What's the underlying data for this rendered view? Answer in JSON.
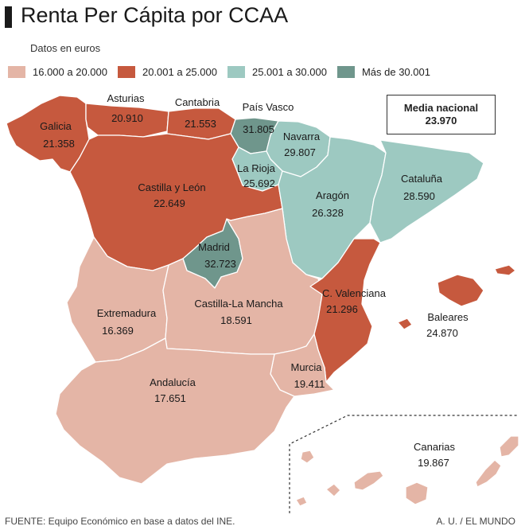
{
  "title": "Renta Per Cápita por CCAA",
  "subtitle": "Datos en euros",
  "legend": [
    {
      "label": "16.000 a 20.000",
      "color": "#e4b5a6"
    },
    {
      "label": "20.001 a 25.000",
      "color": "#c6593e"
    },
    {
      "label": "25.001 a 30.000",
      "color": "#9dc9c1"
    },
    {
      "label": "Más de 30.001",
      "color": "#6f968c"
    }
  ],
  "media": {
    "label": "Media nacional",
    "value": "23.970"
  },
  "regions": [
    {
      "id": "galicia",
      "name": "Galicia",
      "value": "21.358",
      "fill": "#c6593e"
    },
    {
      "id": "asturias",
      "name": "Asturias",
      "value": "20.910",
      "fill": "#c6593e"
    },
    {
      "id": "cantabria",
      "name": "Cantabria",
      "value": "21.553",
      "fill": "#c6593e"
    },
    {
      "id": "pais-vasco",
      "name": "País Vasco",
      "value": "31.805",
      "fill": "#6f968c"
    },
    {
      "id": "navarra",
      "name": "Navarra",
      "value": "29.807",
      "fill": "#9dc9c1"
    },
    {
      "id": "la-rioja",
      "name": "La Rioja",
      "value": "25.692",
      "fill": "#9dc9c1"
    },
    {
      "id": "castilla-leon",
      "name": "Castilla y León",
      "value": "22.649",
      "fill": "#c6593e"
    },
    {
      "id": "aragon",
      "name": "Aragón",
      "value": "26.328",
      "fill": "#9dc9c1"
    },
    {
      "id": "cataluna",
      "name": "Cataluña",
      "value": "28.590",
      "fill": "#9dc9c1"
    },
    {
      "id": "madrid",
      "name": "Madrid",
      "value": "32.723",
      "fill": "#6f968c"
    },
    {
      "id": "extremadura",
      "name": "Extremadura",
      "value": "16.369",
      "fill": "#e4b5a6"
    },
    {
      "id": "castilla-la-mancha",
      "name": "Castilla-La Mancha",
      "value": "18.591",
      "fill": "#e4b5a6"
    },
    {
      "id": "c-valenciana",
      "name": "C. Valenciana",
      "value": "21.296",
      "fill": "#c6593e"
    },
    {
      "id": "baleares",
      "name": "Baleares",
      "value": "24.870",
      "fill": "#c6593e"
    },
    {
      "id": "murcia",
      "name": "Murcia",
      "value": "19.411",
      "fill": "#e4b5a6"
    },
    {
      "id": "andalucia",
      "name": "Andalucía",
      "value": "17.651",
      "fill": "#e4b5a6"
    },
    {
      "id": "canarias",
      "name": "Canarias",
      "value": "19.867",
      "fill": "#e4b5a6"
    }
  ],
  "footer": {
    "source": "FUENTE: Equipo Económico en base a datos del INE.",
    "credit": "A. U. / EL MUNDO"
  }
}
